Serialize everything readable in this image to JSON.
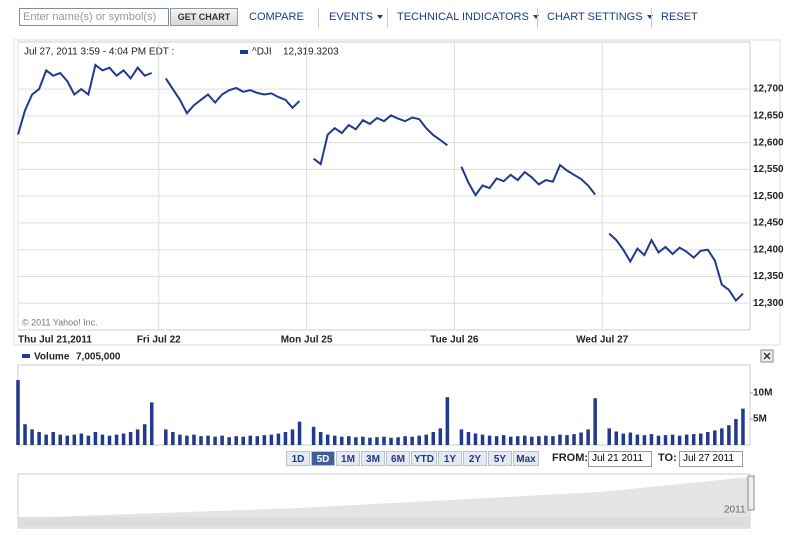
{
  "toolbar": {
    "search_placeholder": "Enter name(s) or symbol(s)",
    "get_chart": "GET CHART",
    "compare": "COMPARE",
    "events": "EVENTS",
    "technical_indicators": "TECHNICAL INDICATORS",
    "chart_settings": "CHART SETTINGS",
    "reset": "RESET"
  },
  "chart_data": [
    {
      "type": "line",
      "header": "Jul 27, 2011 3:59 - 4:04 PM EDT :",
      "copyright": "© 2011 Yahoo! Inc.",
      "categories": [
        "Thu Jul 21,2011",
        null,
        null,
        null,
        null,
        null,
        null,
        null,
        null,
        null,
        null,
        null,
        null,
        null,
        null,
        null,
        null,
        null,
        null,
        null,
        "Fri Jul 22",
        null,
        null,
        null,
        null,
        null,
        null,
        null,
        null,
        null,
        null,
        null,
        null,
        null,
        null,
        null,
        null,
        null,
        null,
        null,
        null,
        "Mon Jul 25",
        null,
        null,
        null,
        null,
        null,
        null,
        null,
        null,
        null,
        null,
        null,
        null,
        null,
        null,
        null,
        null,
        null,
        null,
        null,
        null,
        "Tue Jul 26",
        null,
        null,
        null,
        null,
        null,
        null,
        null,
        null,
        null,
        null,
        null,
        null,
        null,
        null,
        null,
        null,
        null,
        null,
        null,
        null,
        "Wed Jul 27",
        null,
        null,
        null,
        null,
        null,
        null,
        null,
        null,
        null,
        null,
        null,
        null,
        null,
        null,
        null,
        null,
        null,
        null,
        null,
        null
      ],
      "series": [
        {
          "name": "^DJI",
          "legend_value": "12,319.3203",
          "color": "#223a8a",
          "values": [
            12615,
            12660,
            12690,
            12700,
            12735,
            12725,
            12730,
            12715,
            12690,
            12700,
            12690,
            12745,
            12735,
            12740,
            12725,
            12735,
            12720,
            12740,
            12725,
            12730,
            null,
            12720,
            12700,
            12680,
            12655,
            12670,
            12680,
            12690,
            12675,
            12690,
            12698,
            12702,
            12695,
            12698,
            12693,
            12690,
            12692,
            12685,
            12680,
            12665,
            12678,
            null,
            12570,
            12560,
            12615,
            12627,
            12618,
            12633,
            12625,
            12642,
            12635,
            12646,
            12640,
            12651,
            12645,
            12640,
            12647,
            12644,
            12627,
            12614,
            12605,
            12595,
            null,
            12555,
            12525,
            12502,
            12520,
            12515,
            12533,
            12528,
            12540,
            12530,
            12545,
            12535,
            12522,
            12530,
            12527,
            12558,
            12548,
            12540,
            12532,
            12520,
            12503,
            null,
            12430,
            12418,
            12400,
            12378,
            12402,
            12390,
            12418,
            12395,
            12405,
            12392,
            12404,
            12396,
            12385,
            12398,
            12400,
            12380,
            12335,
            12325,
            12305,
            12318
          ]
        }
      ],
      "ylim": [
        12250,
        12788
      ],
      "yticks": [
        {
          "value": 12300,
          "label": "12,300"
        },
        {
          "value": 12350,
          "label": "12,350"
        },
        {
          "value": 12400,
          "label": "12,400"
        },
        {
          "value": 12450,
          "label": "12,450"
        },
        {
          "value": 12500,
          "label": "12,500"
        },
        {
          "value": 12550,
          "label": "12,550"
        },
        {
          "value": 12600,
          "label": "12,600"
        },
        {
          "value": 12650,
          "label": "12,650"
        },
        {
          "value": 12700,
          "label": "12,700"
        }
      ],
      "grid": true
    },
    {
      "type": "bar",
      "series": [
        {
          "name": "Volume",
          "legend_value": "7,005,000",
          "color": "#223a8a",
          "values": [
            12500000,
            4000000,
            3000000,
            2500000,
            2000000,
            2500000,
            2000000,
            1800000,
            2000000,
            2200000,
            1800000,
            2500000,
            2000000,
            1800000,
            2000000,
            2200000,
            2500000,
            3000000,
            4000000,
            8200000,
            null,
            3000000,
            2500000,
            2000000,
            1800000,
            2000000,
            1700000,
            1800000,
            1600000,
            1800000,
            1500000,
            1700000,
            1600000,
            1800000,
            1700000,
            1900000,
            2000000,
            2200000,
            2500000,
            3000000,
            4500000,
            null,
            3500000,
            2500000,
            2000000,
            1800000,
            1600000,
            1700000,
            1500000,
            1600000,
            1400000,
            1500000,
            1600000,
            1400000,
            1500000,
            1700000,
            1600000,
            1800000,
            2000000,
            2500000,
            3200000,
            9200000,
            null,
            3000000,
            2500000,
            2200000,
            2000000,
            1800000,
            1700000,
            1900000,
            1600000,
            1700000,
            1800000,
            1600000,
            1700000,
            1800000,
            1700000,
            2000000,
            1900000,
            2100000,
            2400000,
            3000000,
            9000000,
            null,
            3200000,
            2600000,
            2200000,
            2400000,
            2000000,
            1900000,
            2100000,
            1800000,
            1900000,
            2000000,
            1800000,
            2000000,
            2100000,
            2200000,
            2500000,
            2800000,
            3200000,
            3800000,
            5000000,
            7005000
          ]
        }
      ],
      "ylim": [
        0,
        15400000
      ],
      "yticks": [
        {
          "value": 5000000,
          "label": "5M"
        },
        {
          "value": 10000000,
          "label": "10M"
        }
      ]
    }
  ],
  "range_buttons": [
    "1D",
    "5D",
    "1M",
    "3M",
    "6M",
    "YTD",
    "1Y",
    "2Y",
    "5Y",
    "Max"
  ],
  "date_range": {
    "from_label": "FROM:",
    "from": "Jul 21 2011",
    "to_label": "TO:",
    "to": "Jul 27 2011"
  },
  "navigator": {
    "year": "2011"
  }
}
